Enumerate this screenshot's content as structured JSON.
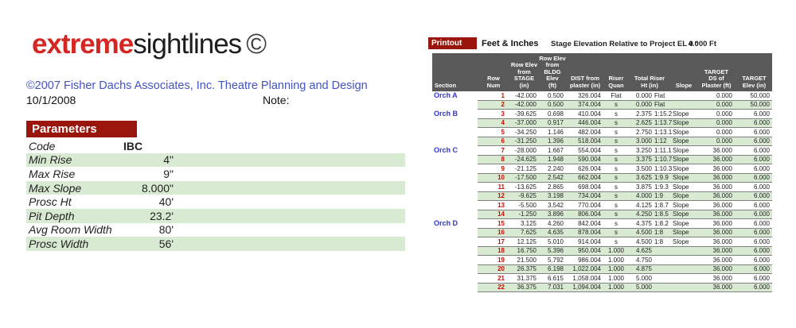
{
  "branding": {
    "logo_primary": "extreme",
    "logo_secondary": "sightlines",
    "logo_symbol": "©",
    "copyright": "©2007 Fisher Dachs Associates, Inc. Theatre Planning and Design",
    "date": "10/1/2008",
    "note_label": "Note:"
  },
  "parameters": {
    "title": "Parameters",
    "rows": [
      {
        "label": "Code",
        "value": "IBC"
      },
      {
        "label": "Min Rise",
        "value": "4\""
      },
      {
        "label": "Max Rise",
        "value": "9\""
      },
      {
        "label": "Max Slope",
        "value": "8.000\""
      },
      {
        "label": "Prosc Ht",
        "value": "40'"
      },
      {
        "label": "Pit Depth",
        "value": "23.2'"
      },
      {
        "label": "Avg Room Width",
        "value": "80'"
      },
      {
        "label": "Prosc Width",
        "value": "56'"
      }
    ]
  },
  "printout": {
    "button_label": "Printout",
    "units_label": "Feet & Inches",
    "stage_elev_label": "Stage Elevation Relative to Project EL 0 :",
    "stage_elev_value": "4.000 Ft",
    "table": {
      "headers": {
        "section": "Section",
        "row_num": "Row\nNum",
        "row_elev_stage": "Row Elev\nfrom\nSTAGE\n(in)",
        "row_elev_bldg": "Row Elev\nfrom BLDG\nElev\n(ft)",
        "dist_plaster": "DIST from\nplaster (in)",
        "riser_quan": "Riser\nQuan",
        "total_riser": "Total Riser\nHt (in)",
        "slope": "Slope",
        "target_ds": "TARGET\nDS of\nPlaster (ft)",
        "target_elev": "TARGET\nElev (in)"
      },
      "rows": [
        {
          "section": "Orch A",
          "num": "1",
          "elev_stage": "-42.000",
          "elev_bldg": "0.500",
          "dist": "326.004",
          "quan": "Flat",
          "riser": "0.000",
          "ratio": "Flat",
          "slope": "",
          "target_ds": "0.000",
          "target_elev": "50.000"
        },
        {
          "section": "",
          "num": "2",
          "elev_stage": "-42.000",
          "elev_bldg": "0.500",
          "dist": "374.004",
          "quan": "s",
          "riser": "0.000",
          "ratio": "Flat",
          "slope": "",
          "target_ds": "0.000",
          "target_elev": "50.000"
        },
        {
          "section": "Orch B",
          "num": "3",
          "elev_stage": "-39.625",
          "elev_bldg": "0.698",
          "dist": "410.004",
          "quan": "s",
          "riser": "2.375",
          "ratio": "1:15.2",
          "slope": "Slope",
          "target_ds": "0.000",
          "target_elev": "6.000"
        },
        {
          "section": "",
          "num": "4",
          "elev_stage": "-37.000",
          "elev_bldg": "0.917",
          "dist": "446.004",
          "quan": "s",
          "riser": "2.625",
          "ratio": "1:13.7",
          "slope": "Slope",
          "target_ds": "0.000",
          "target_elev": "6.000"
        },
        {
          "section": "",
          "num": "5",
          "elev_stage": "-34.250",
          "elev_bldg": "1.146",
          "dist": "482.004",
          "quan": "s",
          "riser": "2.750",
          "ratio": "1:13.1",
          "slope": "Slope",
          "target_ds": "0.000",
          "target_elev": "6.000"
        },
        {
          "section": "",
          "num": "6",
          "elev_stage": "-31.250",
          "elev_bldg": "1.396",
          "dist": "518.004",
          "quan": "s",
          "riser": "3.000",
          "ratio": "1:12",
          "slope": "Slope",
          "target_ds": "0.000",
          "target_elev": "6.000"
        },
        {
          "section": "Orch C",
          "num": "7",
          "elev_stage": "-28.000",
          "elev_bldg": "1.667",
          "dist": "554.004",
          "quan": "s",
          "riser": "3.250",
          "ratio": "1:11.1",
          "slope": "Slope",
          "target_ds": "36.000",
          "target_elev": "6.000"
        },
        {
          "section": "",
          "num": "8",
          "elev_stage": "-24.625",
          "elev_bldg": "1.948",
          "dist": "590.004",
          "quan": "s",
          "riser": "3.375",
          "ratio": "1:10.7",
          "slope": "Slope",
          "target_ds": "36.000",
          "target_elev": "6.000"
        },
        {
          "section": "",
          "num": "9",
          "elev_stage": "-21.125",
          "elev_bldg": "2.240",
          "dist": "626.004",
          "quan": "s",
          "riser": "3.500",
          "ratio": "1:10.3",
          "slope": "Slope",
          "target_ds": "36.000",
          "target_elev": "6.000"
        },
        {
          "section": "",
          "num": "10",
          "elev_stage": "-17.500",
          "elev_bldg": "2.542",
          "dist": "662.004",
          "quan": "s",
          "riser": "3.625",
          "ratio": "1:9.9",
          "slope": "Slope",
          "target_ds": "36.000",
          "target_elev": "6.000"
        },
        {
          "section": "",
          "num": "11",
          "elev_stage": "-13.625",
          "elev_bldg": "2.865",
          "dist": "698.004",
          "quan": "s",
          "riser": "3.875",
          "ratio": "1:9.3",
          "slope": "Slope",
          "target_ds": "36.000",
          "target_elev": "6.000"
        },
        {
          "section": "",
          "num": "12",
          "elev_stage": "-9.625",
          "elev_bldg": "3.198",
          "dist": "734.004",
          "quan": "s",
          "riser": "4.000",
          "ratio": "1:9",
          "slope": "Slope",
          "target_ds": "36.000",
          "target_elev": "6.000"
        },
        {
          "section": "",
          "num": "13",
          "elev_stage": "-5.500",
          "elev_bldg": "3.542",
          "dist": "770.004",
          "quan": "s",
          "riser": "4.125",
          "ratio": "1:8.7",
          "slope": "Slope",
          "target_ds": "36.000",
          "target_elev": "6.000"
        },
        {
          "section": "",
          "num": "14",
          "elev_stage": "-1.250",
          "elev_bldg": "3.896",
          "dist": "806.004",
          "quan": "s",
          "riser": "4.250",
          "ratio": "1:8.5",
          "slope": "Slope",
          "target_ds": "36.000",
          "target_elev": "6.000"
        },
        {
          "section": "Orch D",
          "num": "15",
          "elev_stage": "3.125",
          "elev_bldg": "4.260",
          "dist": "842.004",
          "quan": "s",
          "riser": "4.375",
          "ratio": "1:8.2",
          "slope": "Slope",
          "target_ds": "36.000",
          "target_elev": "6.000"
        },
        {
          "section": "",
          "num": "16",
          "elev_stage": "7.625",
          "elev_bldg": "4.635",
          "dist": "878.004",
          "quan": "s",
          "riser": "4.500",
          "ratio": "1:8",
          "slope": "Slope",
          "target_ds": "36.000",
          "target_elev": "6.000"
        },
        {
          "section": "",
          "num": "17",
          "elev_stage": "12.125",
          "elev_bldg": "5.010",
          "dist": "914.004",
          "quan": "s",
          "riser": "4.500",
          "ratio": "1:8",
          "slope": "Slope",
          "target_ds": "36.000",
          "target_elev": "6.000"
        },
        {
          "section": "",
          "num": "18",
          "elev_stage": "16.750",
          "elev_bldg": "5.396",
          "dist": "950.004",
          "quan": "1.000",
          "riser": "4.625",
          "ratio": "",
          "slope": "",
          "target_ds": "36.000",
          "target_elev": "6.000"
        },
        {
          "section": "",
          "num": "19",
          "elev_stage": "21.500",
          "elev_bldg": "5.792",
          "dist": "986.004",
          "quan": "1.000",
          "riser": "4.750",
          "ratio": "",
          "slope": "",
          "target_ds": "36.000",
          "target_elev": "6.000"
        },
        {
          "section": "",
          "num": "20",
          "elev_stage": "26.375",
          "elev_bldg": "6.198",
          "dist": "1,022.004",
          "quan": "1.000",
          "riser": "4.875",
          "ratio": "",
          "slope": "",
          "target_ds": "36.000",
          "target_elev": "6.000"
        },
        {
          "section": "",
          "num": "21",
          "elev_stage": "31.375",
          "elev_bldg": "6.615",
          "dist": "1,058.004",
          "quan": "1.000",
          "riser": "5.000",
          "ratio": "",
          "slope": "",
          "target_ds": "36.000",
          "target_elev": "6.000"
        },
        {
          "section": "",
          "num": "22",
          "elev_stage": "36.375",
          "elev_bldg": "7.031",
          "dist": "1,094.004",
          "quan": "1.000",
          "riser": "5.000",
          "ratio": "",
          "slope": "",
          "target_ds": "36.000",
          "target_elev": "6.000"
        }
      ]
    }
  },
  "colors": {
    "logo_red": "#d42622",
    "panel_red": "#9a150b",
    "stripe_green": "#d9ead3",
    "header_gray": "#595959",
    "section_blue": "#3437cf",
    "row_num_red": "#c01008",
    "copyright_blue": "#4353c4"
  }
}
